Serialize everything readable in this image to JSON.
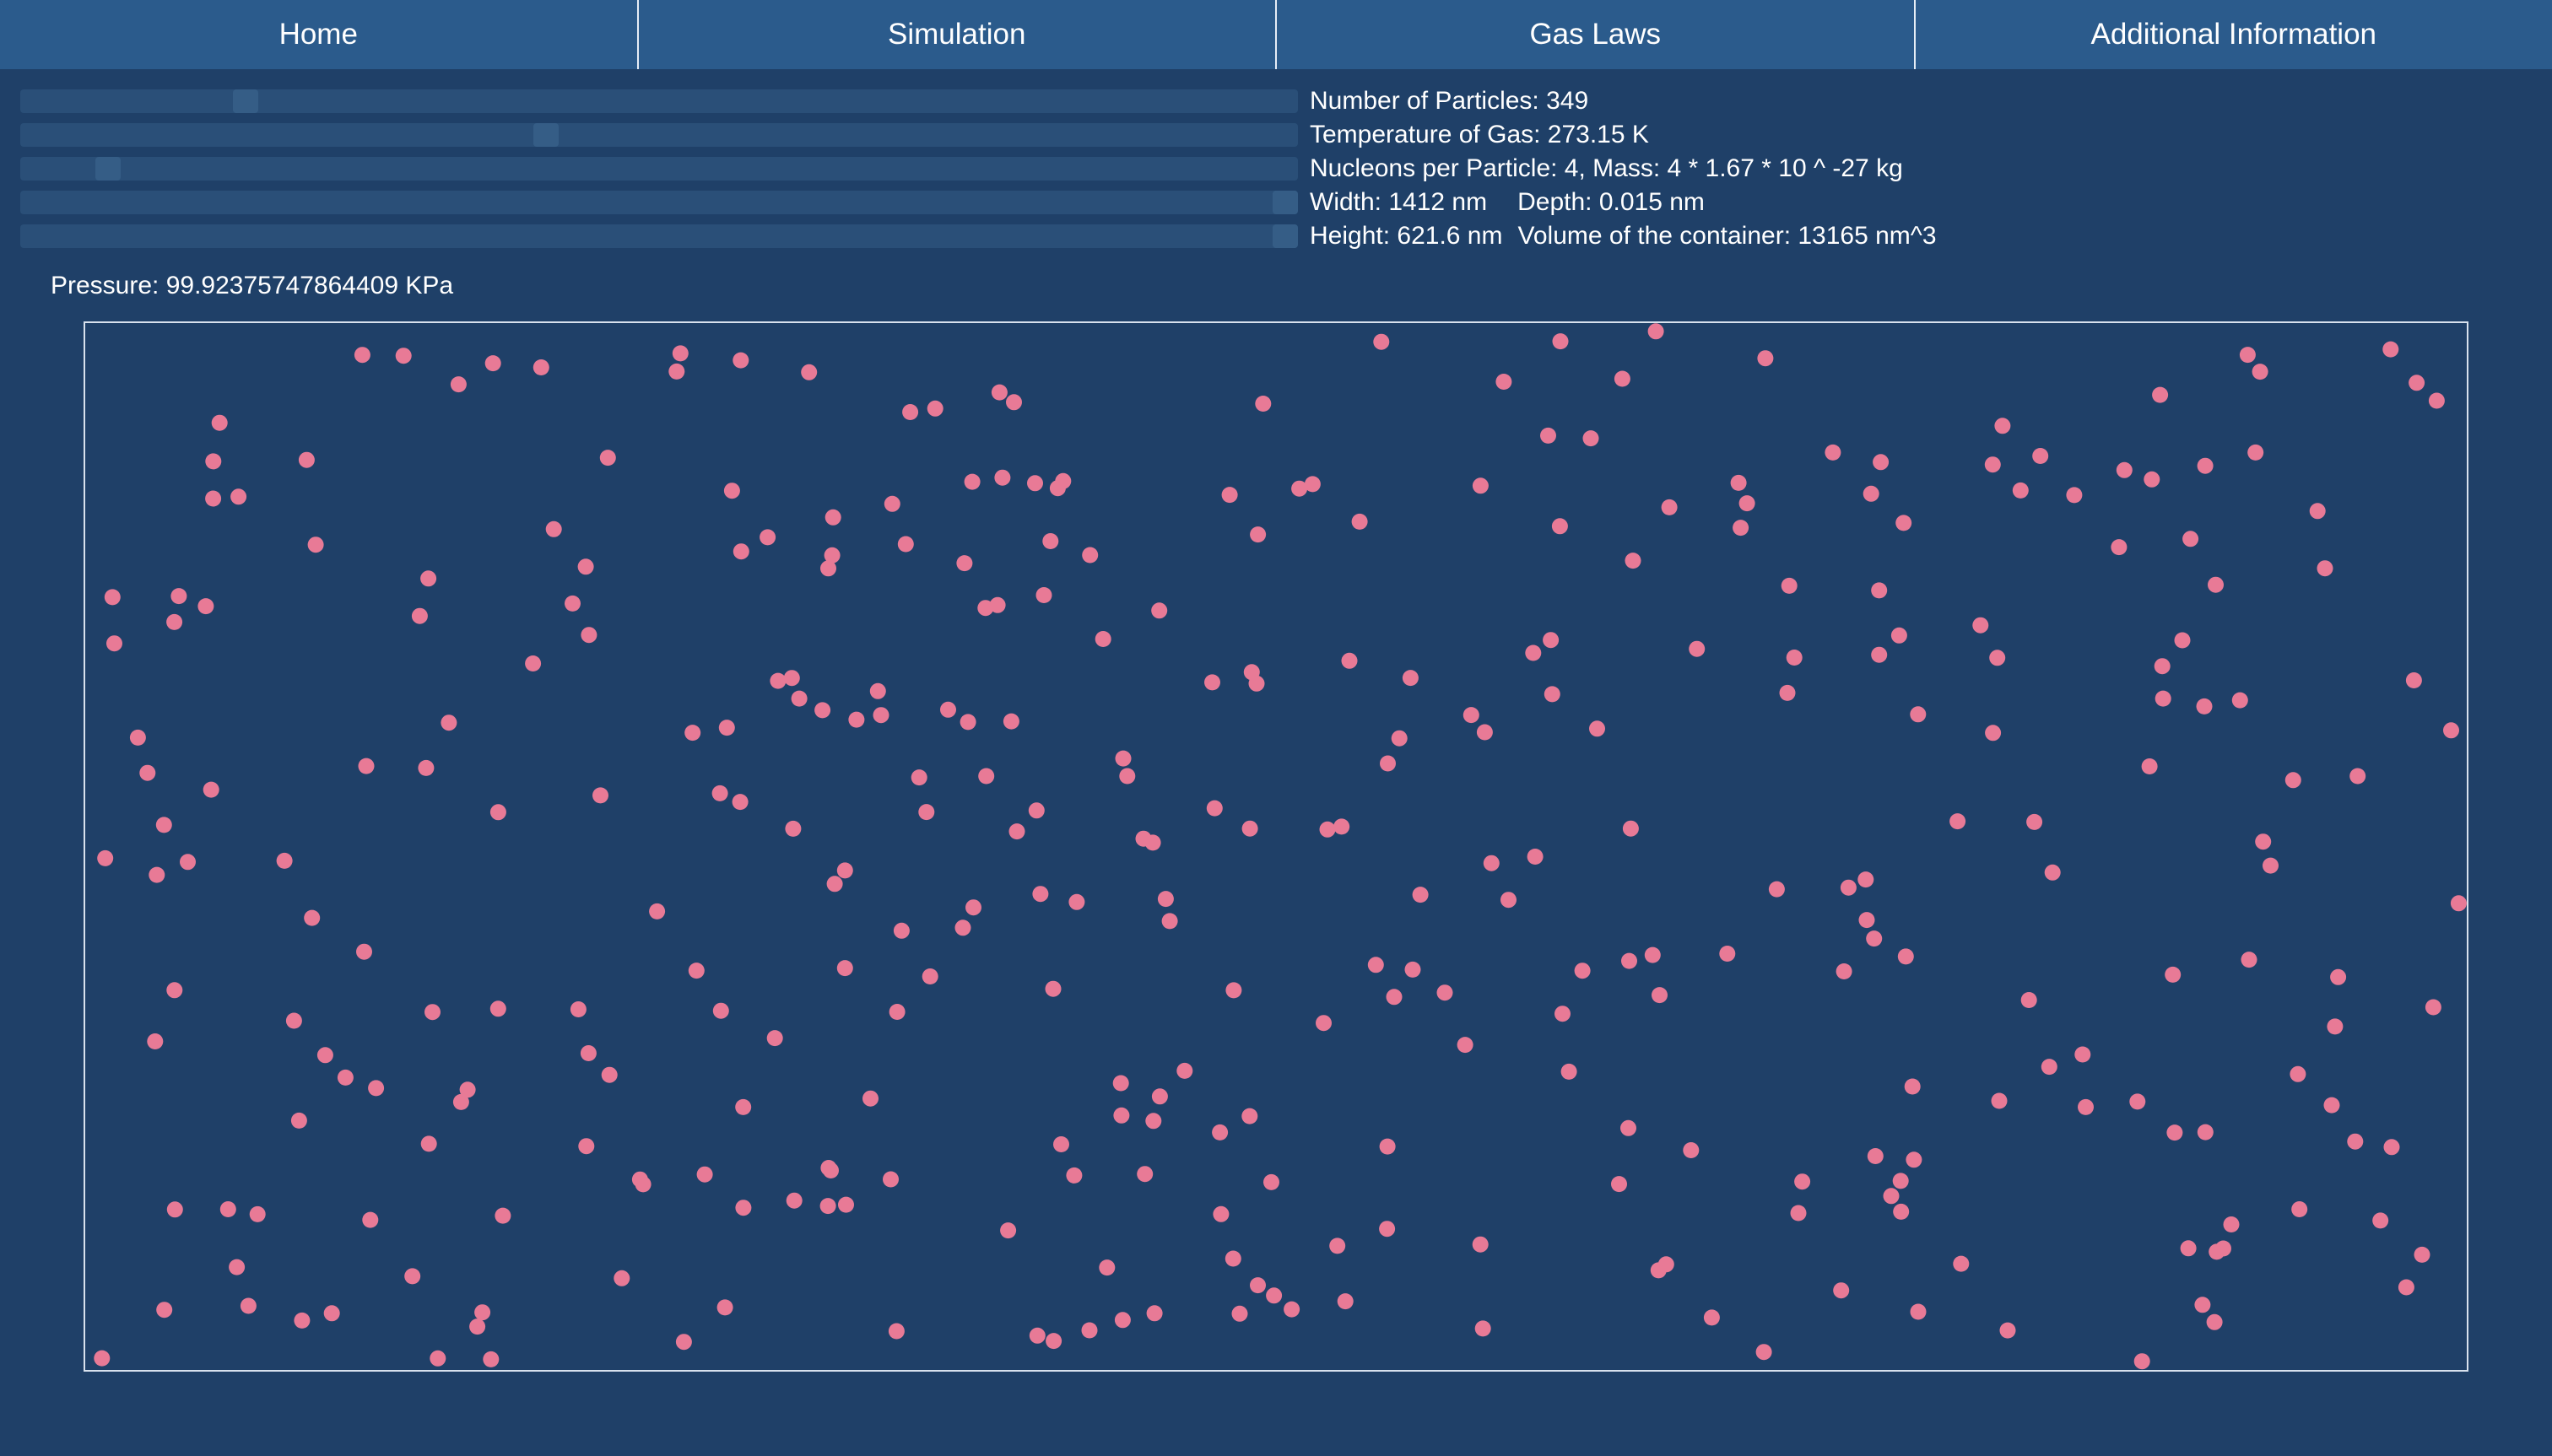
{
  "nav": {
    "tabs": [
      {
        "label": "Home"
      },
      {
        "label": "Simulation"
      },
      {
        "label": "Gas Laws"
      },
      {
        "label": "Additional Information"
      }
    ]
  },
  "controls": {
    "particles": {
      "label": "Number of Particles: 349",
      "value": 349,
      "slider_fraction": 0.17
    },
    "temperature": {
      "label": "Temperature of Gas: 273.15 K",
      "value": 273.15,
      "slider_fraction": 0.41
    },
    "nucleons": {
      "label": "Nucleons per Particle: 4, Mass: 4 * 1.67 * 10 ^ -27 kg",
      "value": 4,
      "slider_fraction": 0.06
    },
    "width": {
      "label": "Width: 1412 nm",
      "depth_label": "Depth: 0.015 nm",
      "value": 1412,
      "slider_fraction": 1.0
    },
    "height": {
      "label": "Height: 621.6 nm",
      "volume_label": "Volume of the container: 13165 nm^3",
      "value": 621.6,
      "slider_fraction": 1.0
    }
  },
  "pressure": {
    "label": "Pressure: 99.92375747864409 KPa"
  },
  "simulation": {
    "particle_count": 349,
    "particle_color": "#e87a96",
    "container_border_color": "#d8e2ee",
    "background_color": "#1f4068"
  }
}
